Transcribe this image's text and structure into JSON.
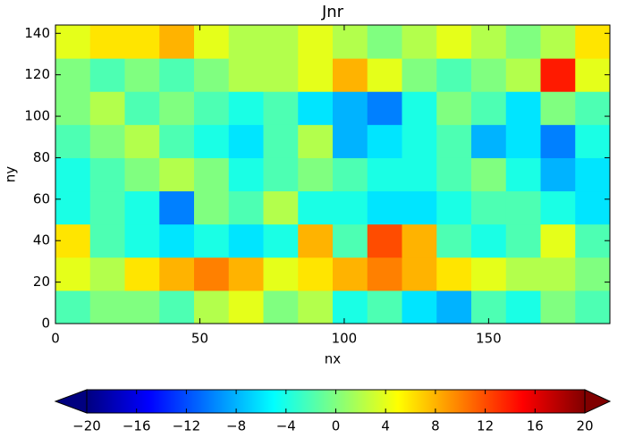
{
  "chart_data": {
    "type": "heatmap",
    "title": "Jnr",
    "x_label": "nx",
    "y_label": "ny",
    "xlim": [
      0,
      192
    ],
    "ylim": [
      0,
      144
    ],
    "xticks": [
      0,
      50,
      100,
      150
    ],
    "yticks": [
      0,
      20,
      40,
      60,
      80,
      100,
      120,
      140
    ],
    "colormap": "jet",
    "clim": [
      -20,
      20
    ],
    "extend": "both",
    "cticks": [
      {
        "value": -20,
        "label": "−20"
      },
      {
        "value": -16,
        "label": "−16"
      },
      {
        "value": -12,
        "label": "−12"
      },
      {
        "value": -8,
        "label": "−8"
      },
      {
        "value": -4,
        "label": "−4"
      },
      0,
      4,
      8,
      12,
      16,
      20
    ],
    "z": [
      [
        -2,
        0,
        0,
        -2,
        2,
        4,
        0,
        2,
        -4,
        -2,
        -6,
        -8,
        -2,
        -4,
        0,
        -2
      ],
      [
        4,
        2,
        6,
        8,
        10,
        8,
        4,
        6,
        8,
        10,
        8,
        6,
        4,
        2,
        2,
        0
      ],
      [
        6,
        -2,
        -4,
        -6,
        -4,
        -6,
        -4,
        8,
        -2,
        12,
        8,
        -2,
        -4,
        -2,
        4,
        -2
      ],
      [
        -4,
        -2,
        -4,
        -10,
        0,
        -2,
        2,
        -4,
        -4,
        -6,
        -6,
        -4,
        -2,
        -2,
        -4,
        -6
      ],
      [
        -4,
        -2,
        0,
        2,
        0,
        -4,
        -2,
        0,
        -2,
        -4,
        -4,
        -2,
        0,
        -4,
        -8,
        -6
      ],
      [
        -2,
        0,
        2,
        -2,
        -4,
        -6,
        -2,
        2,
        -8,
        -6,
        -4,
        -2,
        -8,
        -6,
        -10,
        -4
      ],
      [
        0,
        2,
        -2,
        0,
        -2,
        -4,
        -2,
        -6,
        -8,
        -10,
        -4,
        0,
        -2,
        -6,
        0,
        -2
      ],
      [
        0,
        -2,
        0,
        -2,
        0,
        2,
        2,
        4,
        8,
        4,
        0,
        -2,
        0,
        2,
        14,
        4
      ],
      [
        4,
        6,
        6,
        8,
        4,
        2,
        2,
        4,
        2,
        0,
        2,
        4,
        2,
        0,
        2,
        6
      ]
    ]
  }
}
